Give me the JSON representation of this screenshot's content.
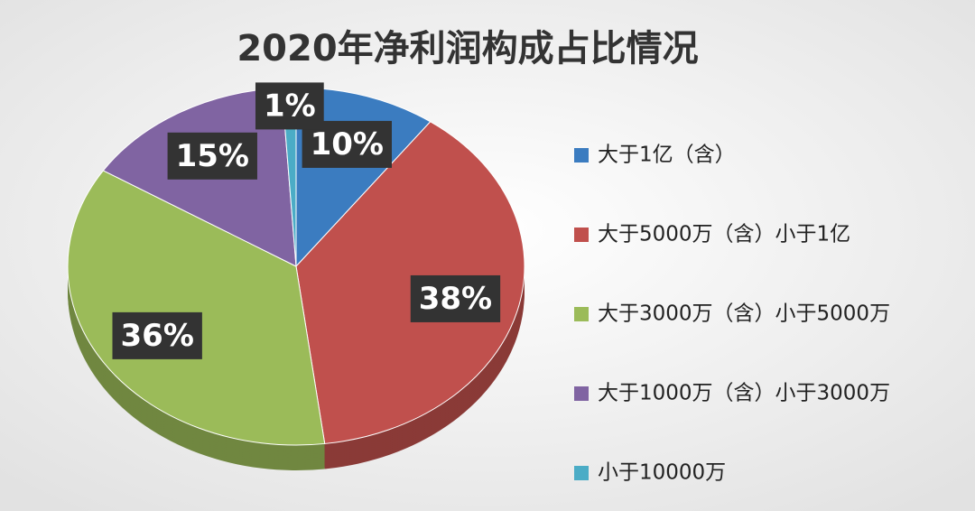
{
  "chart_data": {
    "type": "pie",
    "title": "2020年净利润构成占比情况",
    "categories": [
      "大于1亿（含）",
      "大于5000万（含）小于1亿",
      "大于3000万（含）小于5000万",
      "大于1000万（含）小于3000万",
      "小于10000万"
    ],
    "values": [
      10,
      38,
      36,
      15,
      1
    ],
    "value_labels": [
      "10%",
      "38%",
      "36%",
      "15%",
      "1%"
    ],
    "colors": [
      "#3b7cc0",
      "#c0504d",
      "#9bbb59",
      "#8064a2",
      "#4bacc6"
    ],
    "legend": "right"
  }
}
